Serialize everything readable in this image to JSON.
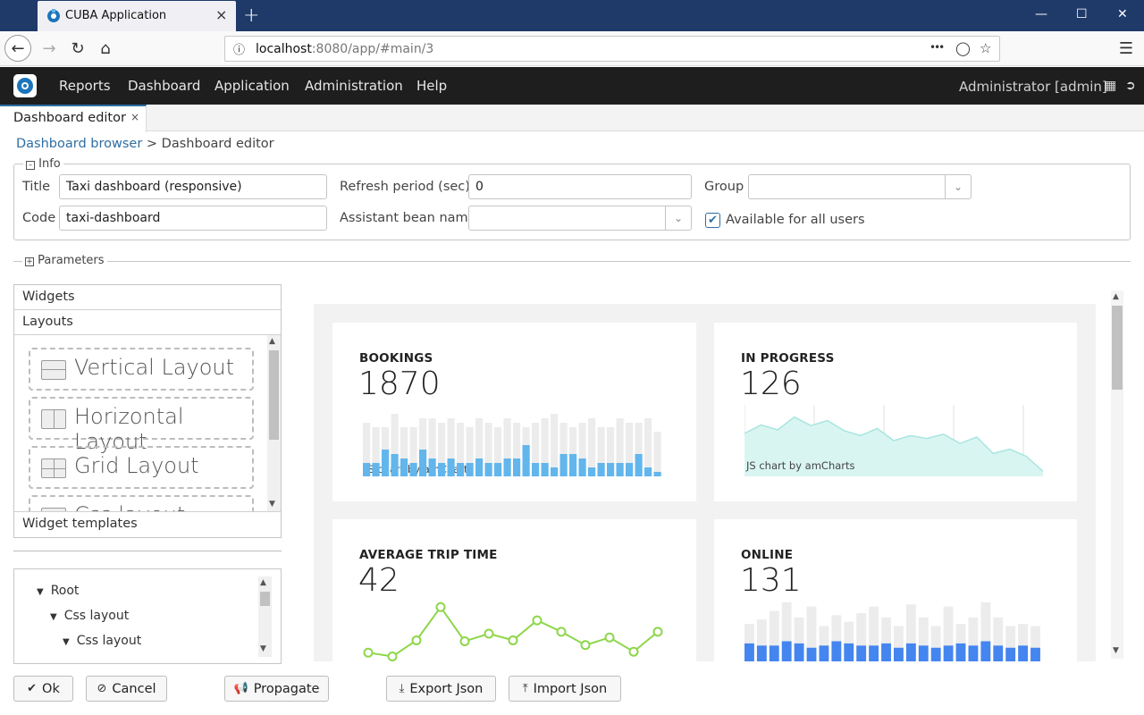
{
  "browser": {
    "tab_title": "CUBA Application",
    "tab_close": "×",
    "new_tab": "+",
    "url_host": "localhost",
    "url_rest": ":8080/app/#main/3",
    "url_more": "•••"
  },
  "app": {
    "menu": [
      "Reports",
      "Dashboard",
      "Application",
      "Administration",
      "Help"
    ],
    "user": "Administrator [admin]",
    "tab_label": "Dashboard editor",
    "tab_close": "×"
  },
  "breadcrumb": {
    "link": "Dashboard browser",
    "separator": ">",
    "current": "Dashboard editor"
  },
  "info": {
    "legend": "Info",
    "title_label": "Title",
    "title_value": "Taxi dashboard (responsive)",
    "code_label": "Code",
    "code_value": "taxi-dashboard",
    "refresh_label": "Refresh period (sec)",
    "refresh_value": "0",
    "bean_label": "Assistant bean name",
    "bean_value": "",
    "group_label": "Group",
    "group_value": "",
    "available_label": "Available for all users",
    "available_checked": true
  },
  "parameters": {
    "legend": "Parameters"
  },
  "palette": {
    "widgets": "Widgets",
    "layouts": "Layouts",
    "items": [
      "Vertical Layout",
      "Horizontal Layout",
      "Grid Layout",
      "Css layout"
    ],
    "templates": "Widget templates"
  },
  "tree": {
    "nodes": [
      "Root",
      "Css layout",
      "Css layout"
    ]
  },
  "cards": [
    {
      "title": "BOOKINGS",
      "value": "1870",
      "watermark": "JS chart by amCharts",
      "chart_type": "bar",
      "bg_values": [
        12,
        11,
        11,
        14,
        11,
        11,
        13,
        13,
        12,
        13,
        12,
        11,
        13,
        12,
        11,
        13,
        12,
        11,
        12,
        13,
        14,
        12,
        11,
        12,
        13,
        11,
        11,
        13,
        12,
        12,
        13,
        10
      ],
      "fg_values": [
        3,
        3,
        6,
        5,
        4,
        3,
        6,
        4,
        3,
        4,
        3,
        3,
        4,
        3,
        3,
        4,
        4,
        7,
        3,
        3,
        2,
        5,
        5,
        4,
        2,
        3,
        3,
        3,
        3,
        5,
        2,
        1
      ],
      "fg_color": "#62b6ec"
    },
    {
      "title": "IN PROGRESS",
      "value": "126",
      "watermark": "JS chart by amCharts",
      "chart_type": "area",
      "values": [
        60,
        72,
        65,
        83,
        71,
        78,
        64,
        57,
        67,
        50,
        57,
        53,
        59,
        46,
        55,
        32,
        38,
        28,
        7
      ]
    },
    {
      "title": "AVERAGE TRIP TIME",
      "value": "42",
      "chart_type": "line",
      "values": [
        12,
        8,
        25,
        60,
        24,
        32,
        25,
        46,
        34,
        20,
        28,
        13,
        34
      ],
      "color": "#8ed64a"
    },
    {
      "title": "ONLINE",
      "value": "131",
      "chart_type": "bar",
      "bg_values": [
        42,
        46,
        54,
        62,
        48,
        58,
        40,
        50,
        44,
        52,
        58,
        48,
        40,
        60,
        48,
        40,
        58,
        42,
        48,
        62,
        48,
        40,
        42,
        40
      ],
      "fg_values": [
        24,
        22,
        22,
        26,
        24,
        20,
        22,
        26,
        24,
        22,
        22,
        24,
        20,
        24,
        22,
        20,
        22,
        24,
        22,
        26,
        22,
        20,
        22,
        20
      ],
      "fg_color": "#4485f0"
    }
  ],
  "buttons": {
    "ok": "Ok",
    "cancel": "Cancel",
    "propagate": "Propagate",
    "export": "Export Json",
    "import": "Import Json"
  }
}
